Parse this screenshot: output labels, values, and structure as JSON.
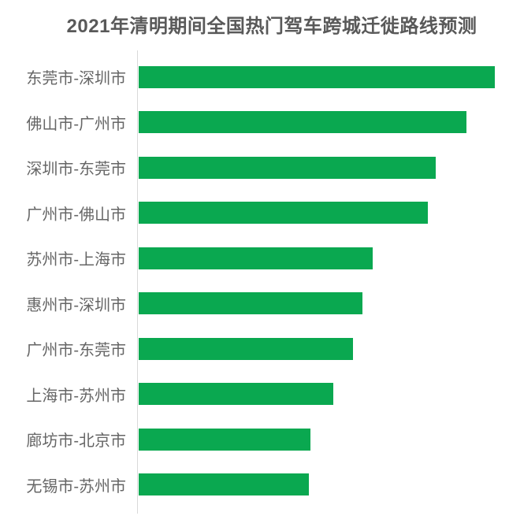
{
  "colors": {
    "bar": "#0aa850",
    "axis_line": "#d9d9d9",
    "title_text": "#595959",
    "label_text": "#666666",
    "background": "#ffffff"
  },
  "chart_data": {
    "type": "bar",
    "orientation": "horizontal",
    "title": "2021年清明期间全国热门驾车跨城迁徙路线预测",
    "categories": [
      "东莞市-深圳市",
      "佛山市-广州市",
      "深圳市-东莞市",
      "广州市-佛山市",
      "苏州市-上海市",
      "惠州市-深圳市",
      "广州市-东莞市",
      "上海市-苏州市",
      "廊坊市-北京市",
      "无锡市-苏州市"
    ],
    "values": [
      100,
      92.0,
      83.4,
      81.2,
      65.7,
      62.8,
      60.2,
      54.6,
      48.2,
      47.8
    ],
    "value_note": "relative route heat, estimated from bar lengths (longest bar = 100); chart shows no numeric value axis or data labels",
    "xlabel": "",
    "ylabel": "",
    "xlim": [
      0,
      100
    ],
    "grid": false,
    "legend": false,
    "bar_order": "descending top to bottom"
  }
}
